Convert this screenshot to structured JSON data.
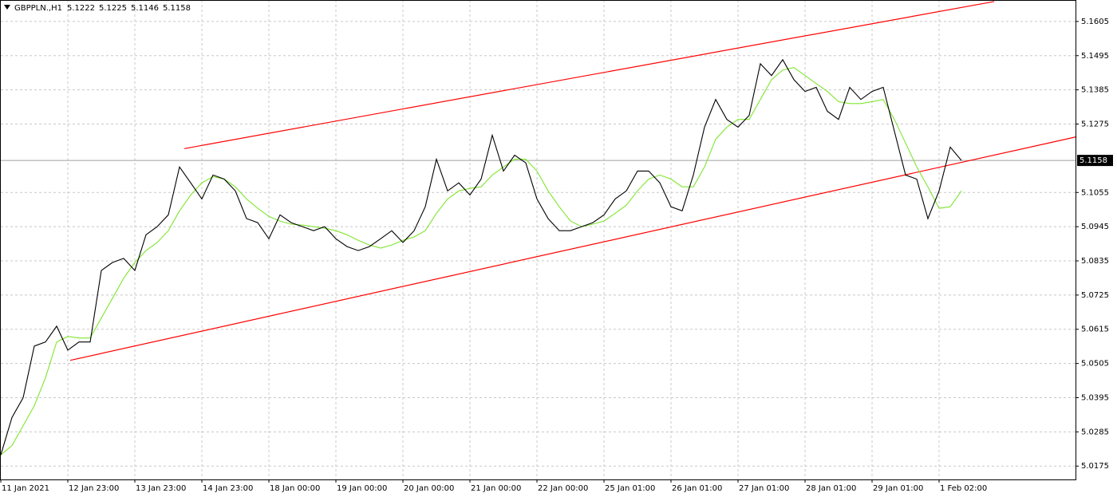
{
  "chart_data": {
    "type": "line",
    "title": "GBPPLN.,H1",
    "header_values": [
      5.1222,
      5.1225,
      5.1146,
      5.1158
    ],
    "categories": [
      "11 Jan 2021",
      null,
      null,
      null,
      null,
      null,
      "12 Jan 23:00",
      null,
      null,
      null,
      null,
      null,
      "13 Jan 23:00",
      null,
      null,
      null,
      null,
      null,
      "14 Jan 23:00",
      null,
      null,
      null,
      null,
      null,
      "18 Jan 00:00",
      null,
      null,
      null,
      null,
      null,
      "19 Jan 00:00",
      null,
      null,
      null,
      null,
      null,
      "20 Jan 00:00",
      null,
      null,
      null,
      null,
      null,
      "21 Jan 00:00",
      null,
      null,
      null,
      null,
      null,
      "22 Jan 00:00",
      null,
      null,
      null,
      null,
      null,
      "25 Jan 01:00",
      null,
      null,
      null,
      null,
      null,
      "26 Jan 01:00",
      null,
      null,
      null,
      null,
      null,
      "27 Jan 01:00",
      null,
      null,
      null,
      null,
      null,
      "28 Jan 01:00",
      null,
      null,
      null,
      null,
      null,
      "29 Jan 01:00",
      null,
      null,
      null,
      null,
      null,
      "1 Feb 02:00",
      null,
      null
    ],
    "series": [
      {
        "color": "#000000",
        "values": [
          5.0211,
          5.0331,
          5.0395,
          5.0561,
          5.0574,
          5.0625,
          5.0548,
          5.0574,
          5.0574,
          5.0804,
          5.083,
          5.0843,
          5.0804,
          5.0919,
          5.0945,
          5.0983,
          5.1137,
          5.1086,
          5.1034,
          5.1111,
          5.1098,
          5.106,
          5.0971,
          5.0958,
          5.0906,
          5.0983,
          5.0958,
          5.0945,
          5.0932,
          5.0945,
          5.0906,
          5.0881,
          5.0868,
          5.0881,
          5.0906,
          5.0932,
          5.0894,
          5.0932,
          5.1009,
          5.1162,
          5.106,
          5.1086,
          5.1047,
          5.1098,
          5.1239,
          5.1124,
          5.1175,
          5.115,
          5.1034,
          5.0971,
          5.0932,
          5.0932,
          5.0945,
          5.0958,
          5.0983,
          5.1034,
          5.106,
          5.1124,
          5.1124,
          5.1086,
          5.1009,
          5.0996,
          5.1111,
          5.1265,
          5.1354,
          5.129,
          5.1265,
          5.1303,
          5.1469,
          5.1431,
          5.1482,
          5.1418,
          5.138,
          5.1393,
          5.1316,
          5.129,
          5.1393,
          5.1354,
          5.138,
          5.1393,
          5.1252,
          5.1111,
          5.1098,
          5.0971,
          5.106,
          5.1201,
          5.1158
        ]
      },
      {
        "color": "#7fe62e",
        "values": [
          5.0211,
          5.0241,
          5.0305,
          5.0369,
          5.0459,
          5.0574,
          5.0592,
          5.0587,
          5.0587,
          5.0651,
          5.0715,
          5.0779,
          5.083,
          5.0868,
          5.0894,
          5.0932,
          5.0996,
          5.1047,
          5.1086,
          5.1106,
          5.1098,
          5.1073,
          5.1034,
          5.1004,
          5.0978,
          5.0963,
          5.0953,
          5.095,
          5.0945,
          5.094,
          5.0932,
          5.0919,
          5.0901,
          5.0886,
          5.0876,
          5.0886,
          5.0901,
          5.0912,
          5.0932,
          5.0988,
          5.1034,
          5.106,
          5.1068,
          5.1073,
          5.1111,
          5.1137,
          5.1162,
          5.1162,
          5.1124,
          5.106,
          5.1009,
          5.0963,
          5.0945,
          5.0953,
          5.0963,
          5.0988,
          5.1014,
          5.106,
          5.1098,
          5.1111,
          5.1098,
          5.1073,
          5.1073,
          5.1137,
          5.1226,
          5.1265,
          5.129,
          5.129,
          5.1354,
          5.1418,
          5.1449,
          5.1457,
          5.1431,
          5.1405,
          5.138,
          5.1347,
          5.1341,
          5.1341,
          5.1347,
          5.1354,
          5.129,
          5.1214,
          5.1137,
          5.1073,
          5.1004,
          5.1009,
          5.106
        ]
      }
    ],
    "trendlines": [
      {
        "color": "#ff0000",
        "x": [
          16.43,
          88.93
        ],
        "values": [
          5.1196,
          5.1669
        ]
      },
      {
        "color": "#ff0000",
        "x": [
          6.21,
          96.3
        ],
        "values": [
          5.0515,
          5.1234
        ]
      }
    ],
    "ylim": [
      5.0132,
      5.1674
    ],
    "yticks": [
      5.0175,
      5.0285,
      5.0395,
      5.0505,
      5.0615,
      5.0725,
      5.0835,
      5.0945,
      5.1055,
      5.1275,
      5.1385,
      5.1495,
      5.1605
    ],
    "grid": true
  }
}
